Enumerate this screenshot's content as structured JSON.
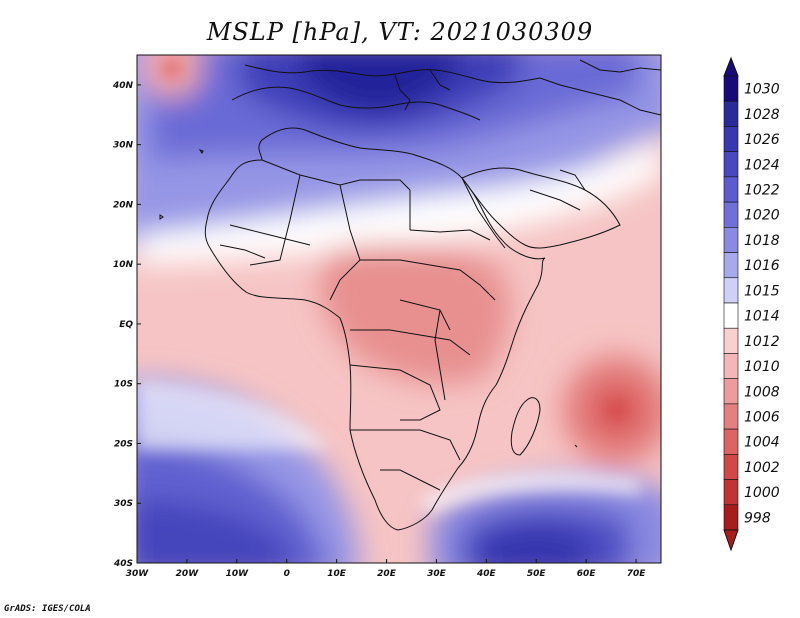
{
  "title": "MSLP [hPa], VT: 2021030309",
  "credit": "GrADS: IGES/COLA",
  "map": {
    "projection": "lat-lon",
    "lon_range": [
      -30,
      75
    ],
    "lat_range": [
      -40,
      45
    ],
    "lon_ticks": [
      {
        "value": -30,
        "label": "30W"
      },
      {
        "value": -20,
        "label": "20W"
      },
      {
        "value": -10,
        "label": "10W"
      },
      {
        "value": 0,
        "label": "0"
      },
      {
        "value": 10,
        "label": "10E"
      },
      {
        "value": 20,
        "label": "20E"
      },
      {
        "value": 30,
        "label": "30E"
      },
      {
        "value": 40,
        "label": "40E"
      },
      {
        "value": 50,
        "label": "50E"
      },
      {
        "value": 60,
        "label": "60E"
      },
      {
        "value": 70,
        "label": "70E"
      }
    ],
    "lat_ticks": [
      {
        "value": 40,
        "label": "40N"
      },
      {
        "value": 30,
        "label": "30N"
      },
      {
        "value": 20,
        "label": "20N"
      },
      {
        "value": 10,
        "label": "10N"
      },
      {
        "value": 0,
        "label": "EQ"
      },
      {
        "value": -10,
        "label": "10S"
      },
      {
        "value": -20,
        "label": "20S"
      },
      {
        "value": -30,
        "label": "30S"
      },
      {
        "value": -40,
        "label": "40S"
      }
    ],
    "pressure_features": [
      {
        "type": "high",
        "name": "mediterranean-high",
        "lon": 20,
        "lat": 38,
        "hPa": 1030
      },
      {
        "type": "high",
        "name": "south-atlantic-high",
        "lon": -15,
        "lat": -35,
        "hPa": 1024
      },
      {
        "type": "high",
        "name": "south-indian-high",
        "lon": 50,
        "lat": -37,
        "hPa": 1026
      },
      {
        "type": "low",
        "name": "indian-ocean-low",
        "lon": 66,
        "lat": -15,
        "hPa": 1006
      },
      {
        "type": "low",
        "name": "atlantic-low-nw",
        "lon": -23,
        "lat": 42.5,
        "hPa": 1008
      }
    ]
  },
  "colorbar": {
    "levels": [
      {
        "label": "1030",
        "color": "#1a0a78"
      },
      {
        "label": "1028",
        "color": "#2a2a9a"
      },
      {
        "label": "1026",
        "color": "#3838b0"
      },
      {
        "label": "1024",
        "color": "#4848c0"
      },
      {
        "label": "1022",
        "color": "#5c5cd0"
      },
      {
        "label": "1020",
        "color": "#7070d8"
      },
      {
        "label": "1018",
        "color": "#8a8ae2"
      },
      {
        "label": "1016",
        "color": "#a8a8ec"
      },
      {
        "label": "1015",
        "color": "#d0d0f6"
      },
      {
        "label": "1014",
        "color": "#ffffff"
      },
      {
        "label": "1012",
        "color": "#f8d0d0"
      },
      {
        "label": "1010",
        "color": "#f4b6b6"
      },
      {
        "label": "1008",
        "color": "#ec9c9c"
      },
      {
        "label": "1006",
        "color": "#e48080"
      },
      {
        "label": "1004",
        "color": "#dc6464"
      },
      {
        "label": "1002",
        "color": "#d04848"
      },
      {
        "label": "1000",
        "color": "#c03434"
      },
      {
        "label": "998",
        "color": "#a81c1c"
      }
    ]
  }
}
